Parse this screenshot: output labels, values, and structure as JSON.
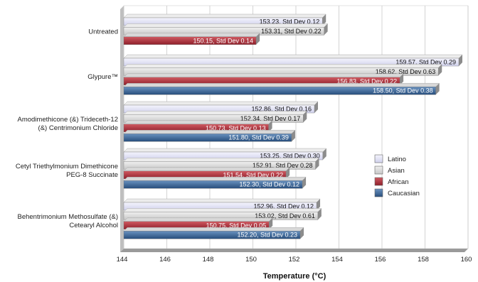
{
  "chart_data": {
    "type": "bar",
    "orientation": "horizontal",
    "title": "",
    "xlabel": "Temperature (°C)",
    "ylabel": "",
    "xlim": [
      144,
      160
    ],
    "xticks": [
      144,
      146,
      148,
      150,
      152,
      154,
      156,
      158,
      160
    ],
    "grid": "vertical",
    "legend_position": "right",
    "categories": [
      {
        "lines": [
          "Untreated"
        ]
      },
      {
        "lines": [
          "Glypure™"
        ]
      },
      {
        "lines": [
          "Amodimethicone (&) Trideceth-12",
          "(&) Centrimonium Chloride"
        ]
      },
      {
        "lines": [
          "Cetyl Triethylmonium Dimethicone",
          "PEG-8 Succinate"
        ]
      },
      {
        "lines": [
          "Behentrimonium Methosulfate (&)",
          "Cetearyl Alcohol"
        ]
      }
    ],
    "series": [
      {
        "name": "Latino",
        "color": "#e3e4f6",
        "dark_text": false,
        "values": [
          153.23,
          159.57,
          152.86,
          153.25,
          152.96
        ],
        "labels": [
          "153.23, Std Dev 0.12",
          "159.57, Std Dev 0.29",
          "152.86, Std Dev 0.16",
          "153.25, Std Dev 0.30",
          "152.96, Std Dev 0.12"
        ]
      },
      {
        "name": "Asian",
        "color": "#dcdcdc",
        "dark_text": false,
        "values": [
          153.31,
          158.62,
          152.34,
          152.91,
          153.02
        ],
        "labels": [
          "153.31, Std Dev 0.22",
          "158.62, Std Dev 0.63",
          "152.34, Std Dev 0.17",
          "152.91, Std Dev 0.28",
          "153.02, Std Dev 0.61"
        ]
      },
      {
        "name": "African",
        "color": "#b2343e",
        "dark_text": true,
        "values": [
          150.15,
          156.83,
          150.73,
          151.54,
          150.75
        ],
        "labels": [
          "150.15, Std Dev 0.14",
          "156.83, Std Dev 0.22",
          "150.73, Std Dev 0.13",
          "151.54, Std Dev 0.22",
          "150.75, Std Dev 0.05"
        ]
      },
      {
        "name": "Caucasian",
        "color": "#3e6a9c",
        "dark_text": true,
        "values": [
          null,
          158.5,
          151.8,
          152.3,
          152.2
        ],
        "labels": [
          null,
          "158.50, Std Dev 0.38",
          "151.80, Std Dev 0.39",
          "152.30, Std Dev 0.12",
          "152.20, Std Dev 0.23"
        ]
      }
    ]
  }
}
